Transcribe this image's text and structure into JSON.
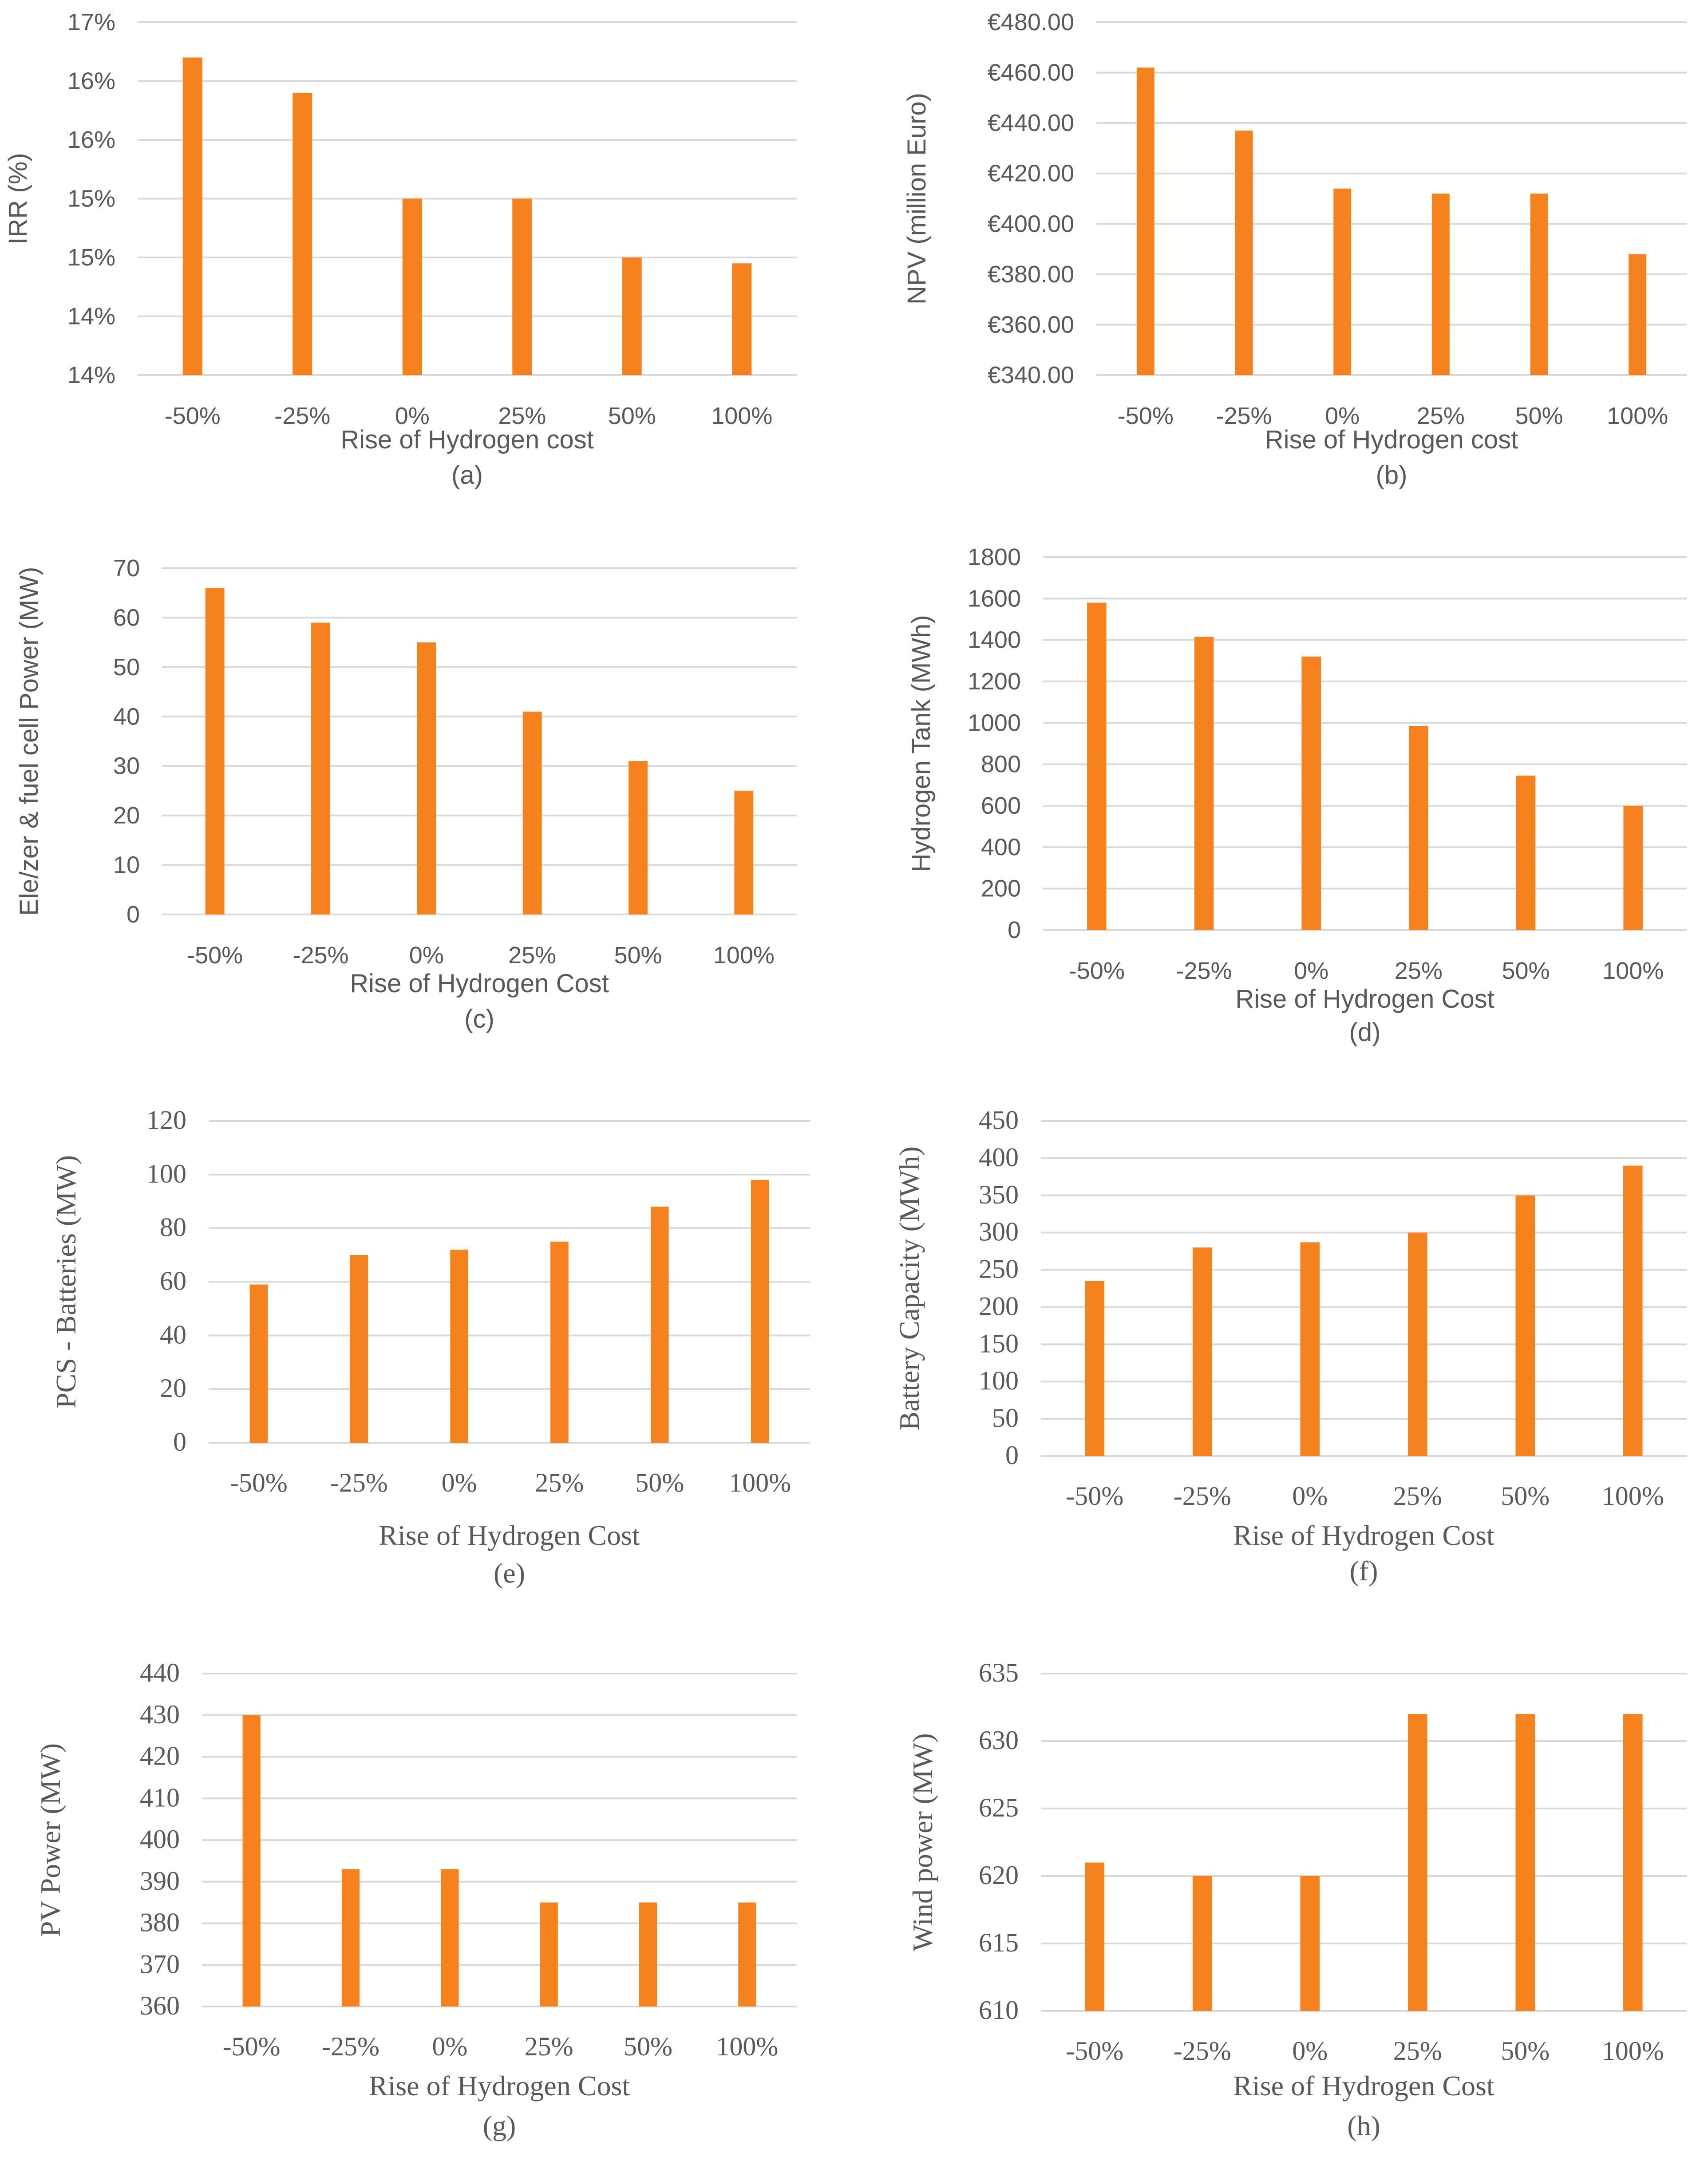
{
  "colors": {
    "bar": "#f5821f",
    "grid": "#d9d9d9",
    "text": "#595959"
  },
  "chart_data": [
    {
      "type": "bar",
      "caption": "(a)",
      "categories": [
        "-50%",
        "-25%",
        "0%",
        "25%",
        "50%",
        "100%"
      ],
      "values": [
        16.2,
        15.9,
        15.0,
        15.0,
        14.5,
        14.45
      ],
      "ylim": [
        13.5,
        16.5
      ],
      "yticks": [
        13.5,
        14.0,
        14.5,
        15.0,
        15.5,
        16.0,
        16.5
      ],
      "ytick_labels": [
        "14%",
        "14%",
        "15%",
        "15%",
        "16%",
        "16%",
        "17%"
      ],
      "xlabel": "Rise of Hydrogen cost",
      "ylabel": "IRR (%)"
    },
    {
      "type": "bar",
      "caption": "(b)",
      "categories": [
        "-50%",
        "-25%",
        "0%",
        "25%",
        "50%",
        "100%"
      ],
      "values": [
        462,
        437,
        414,
        412,
        412,
        388
      ],
      "ylim": [
        340,
        480
      ],
      "yticks": [
        340,
        360,
        380,
        400,
        420,
        440,
        460,
        480
      ],
      "ytick_labels": [
        "€340.00",
        "€360.00",
        "€380.00",
        "€400.00",
        "€420.00",
        "€440.00",
        "€460.00",
        "€480.00"
      ],
      "xlabel": "Rise of Hydrogen cost",
      "ylabel": "NPV (million Euro)"
    },
    {
      "type": "bar",
      "caption": "(c)",
      "categories": [
        "-50%",
        "-25%",
        "0%",
        "25%",
        "50%",
        "100%"
      ],
      "values": [
        66,
        59,
        55,
        41,
        31,
        25
      ],
      "ylim": [
        0,
        70
      ],
      "yticks": [
        0,
        10,
        20,
        30,
        40,
        50,
        60,
        70
      ],
      "ytick_labels": [
        "0",
        "10",
        "20",
        "30",
        "40",
        "50",
        "60",
        "70"
      ],
      "xlabel": "Rise of Hydrogen Cost",
      "ylabel": "Ele/zer & fuel cell Power (MW)"
    },
    {
      "type": "bar",
      "caption": "(d)",
      "categories": [
        "-50%",
        "-25%",
        "0%",
        "25%",
        "50%",
        "100%"
      ],
      "values": [
        1580,
        1415,
        1320,
        985,
        745,
        600
      ],
      "ylim": [
        0,
        1800
      ],
      "yticks": [
        0,
        200,
        400,
        600,
        800,
        1000,
        1200,
        1400,
        1600,
        1800
      ],
      "ytick_labels": [
        "0",
        "200",
        "400",
        "600",
        "800",
        "1000",
        "1200",
        "1400",
        "1600",
        "1800"
      ],
      "xlabel": "Rise of Hydrogen Cost",
      "ylabel": "Hydrogen Tank (MWh)"
    },
    {
      "type": "bar",
      "caption": "(e)",
      "categories": [
        "-50%",
        "-25%",
        "0%",
        "25%",
        "50%",
        "100%"
      ],
      "values": [
        59,
        70,
        72,
        75,
        88,
        98
      ],
      "ylim": [
        0,
        120
      ],
      "yticks": [
        0,
        20,
        40,
        60,
        80,
        100,
        120
      ],
      "ytick_labels": [
        "0",
        "20",
        "40",
        "60",
        "80",
        "100",
        "120"
      ],
      "xlabel": "Rise of Hydrogen Cost",
      "ylabel": "PCS - Batteries (MW)"
    },
    {
      "type": "bar",
      "caption": "(f)",
      "categories": [
        "-50%",
        "-25%",
        "0%",
        "25%",
        "50%",
        "100%"
      ],
      "values": [
        235,
        280,
        287,
        300,
        350,
        390
      ],
      "ylim": [
        0,
        450
      ],
      "yticks": [
        0,
        50,
        100,
        150,
        200,
        250,
        300,
        350,
        400,
        450
      ],
      "ytick_labels": [
        "0",
        "50",
        "100",
        "150",
        "200",
        "250",
        "300",
        "350",
        "400",
        "450"
      ],
      "xlabel": "Rise of Hydrogen Cost",
      "ylabel": "Battery Capacity (MWh)"
    },
    {
      "type": "bar",
      "caption": "(g)",
      "categories": [
        "-50%",
        "-25%",
        "0%",
        "25%",
        "50%",
        "100%"
      ],
      "values": [
        430,
        393,
        393,
        385,
        385,
        385
      ],
      "ylim": [
        360,
        440
      ],
      "yticks": [
        360,
        370,
        380,
        390,
        400,
        410,
        420,
        430,
        440
      ],
      "ytick_labels": [
        "360",
        "370",
        "380",
        "390",
        "400",
        "410",
        "420",
        "430",
        "440"
      ],
      "xlabel": "Rise of Hydrogen Cost",
      "ylabel": "PV Power (MW)"
    },
    {
      "type": "bar",
      "caption": "(h)",
      "categories": [
        "-50%",
        "-25%",
        "0%",
        "25%",
        "50%",
        "100%"
      ],
      "values": [
        621,
        620,
        620,
        632,
        632,
        632
      ],
      "ylim": [
        610,
        635
      ],
      "yticks": [
        610,
        615,
        620,
        625,
        630,
        635
      ],
      "ytick_labels": [
        "610",
        "615",
        "620",
        "625",
        "630",
        "635"
      ],
      "xlabel": "Rise of Hydrogen Cost",
      "ylabel": "Wind power (MW)"
    }
  ]
}
